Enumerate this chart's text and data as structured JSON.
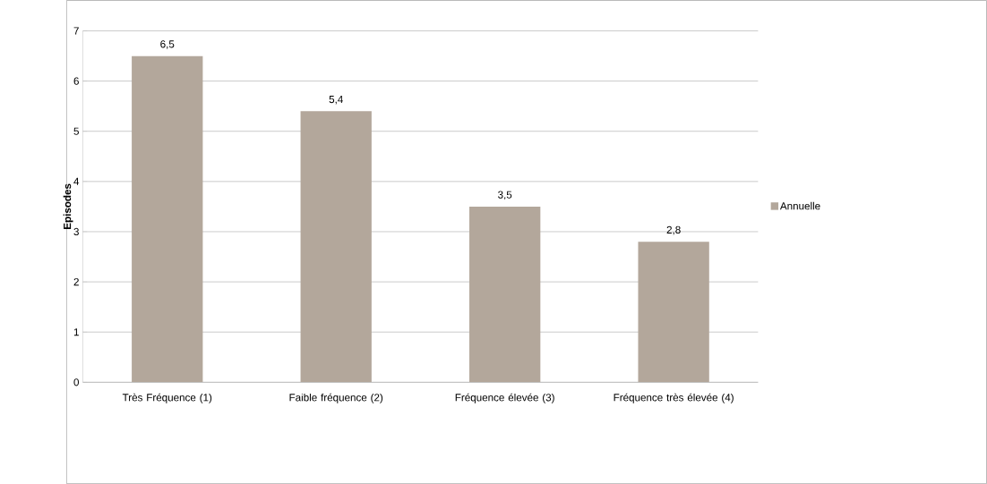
{
  "chart_data": {
    "type": "bar",
    "ylabel": "Episodes",
    "categories": [
      "Très Fréquence (1)",
      "Faible fréquence (2)",
      "Fréquence élevée (3)",
      "Fréquence très élevée (4)"
    ],
    "series": [
      {
        "name": "Annuelle",
        "color": "#b3a79b",
        "values": [
          6.5,
          5.4,
          3.5,
          2.8
        ],
        "value_labels": [
          "6,5",
          "5,4",
          "3,5",
          "2,8"
        ]
      }
    ],
    "ylim": [
      0,
      7
    ],
    "yticks": [
      0,
      1,
      2,
      3,
      4,
      5,
      6,
      7
    ],
    "grid": "y",
    "legend": "right"
  }
}
